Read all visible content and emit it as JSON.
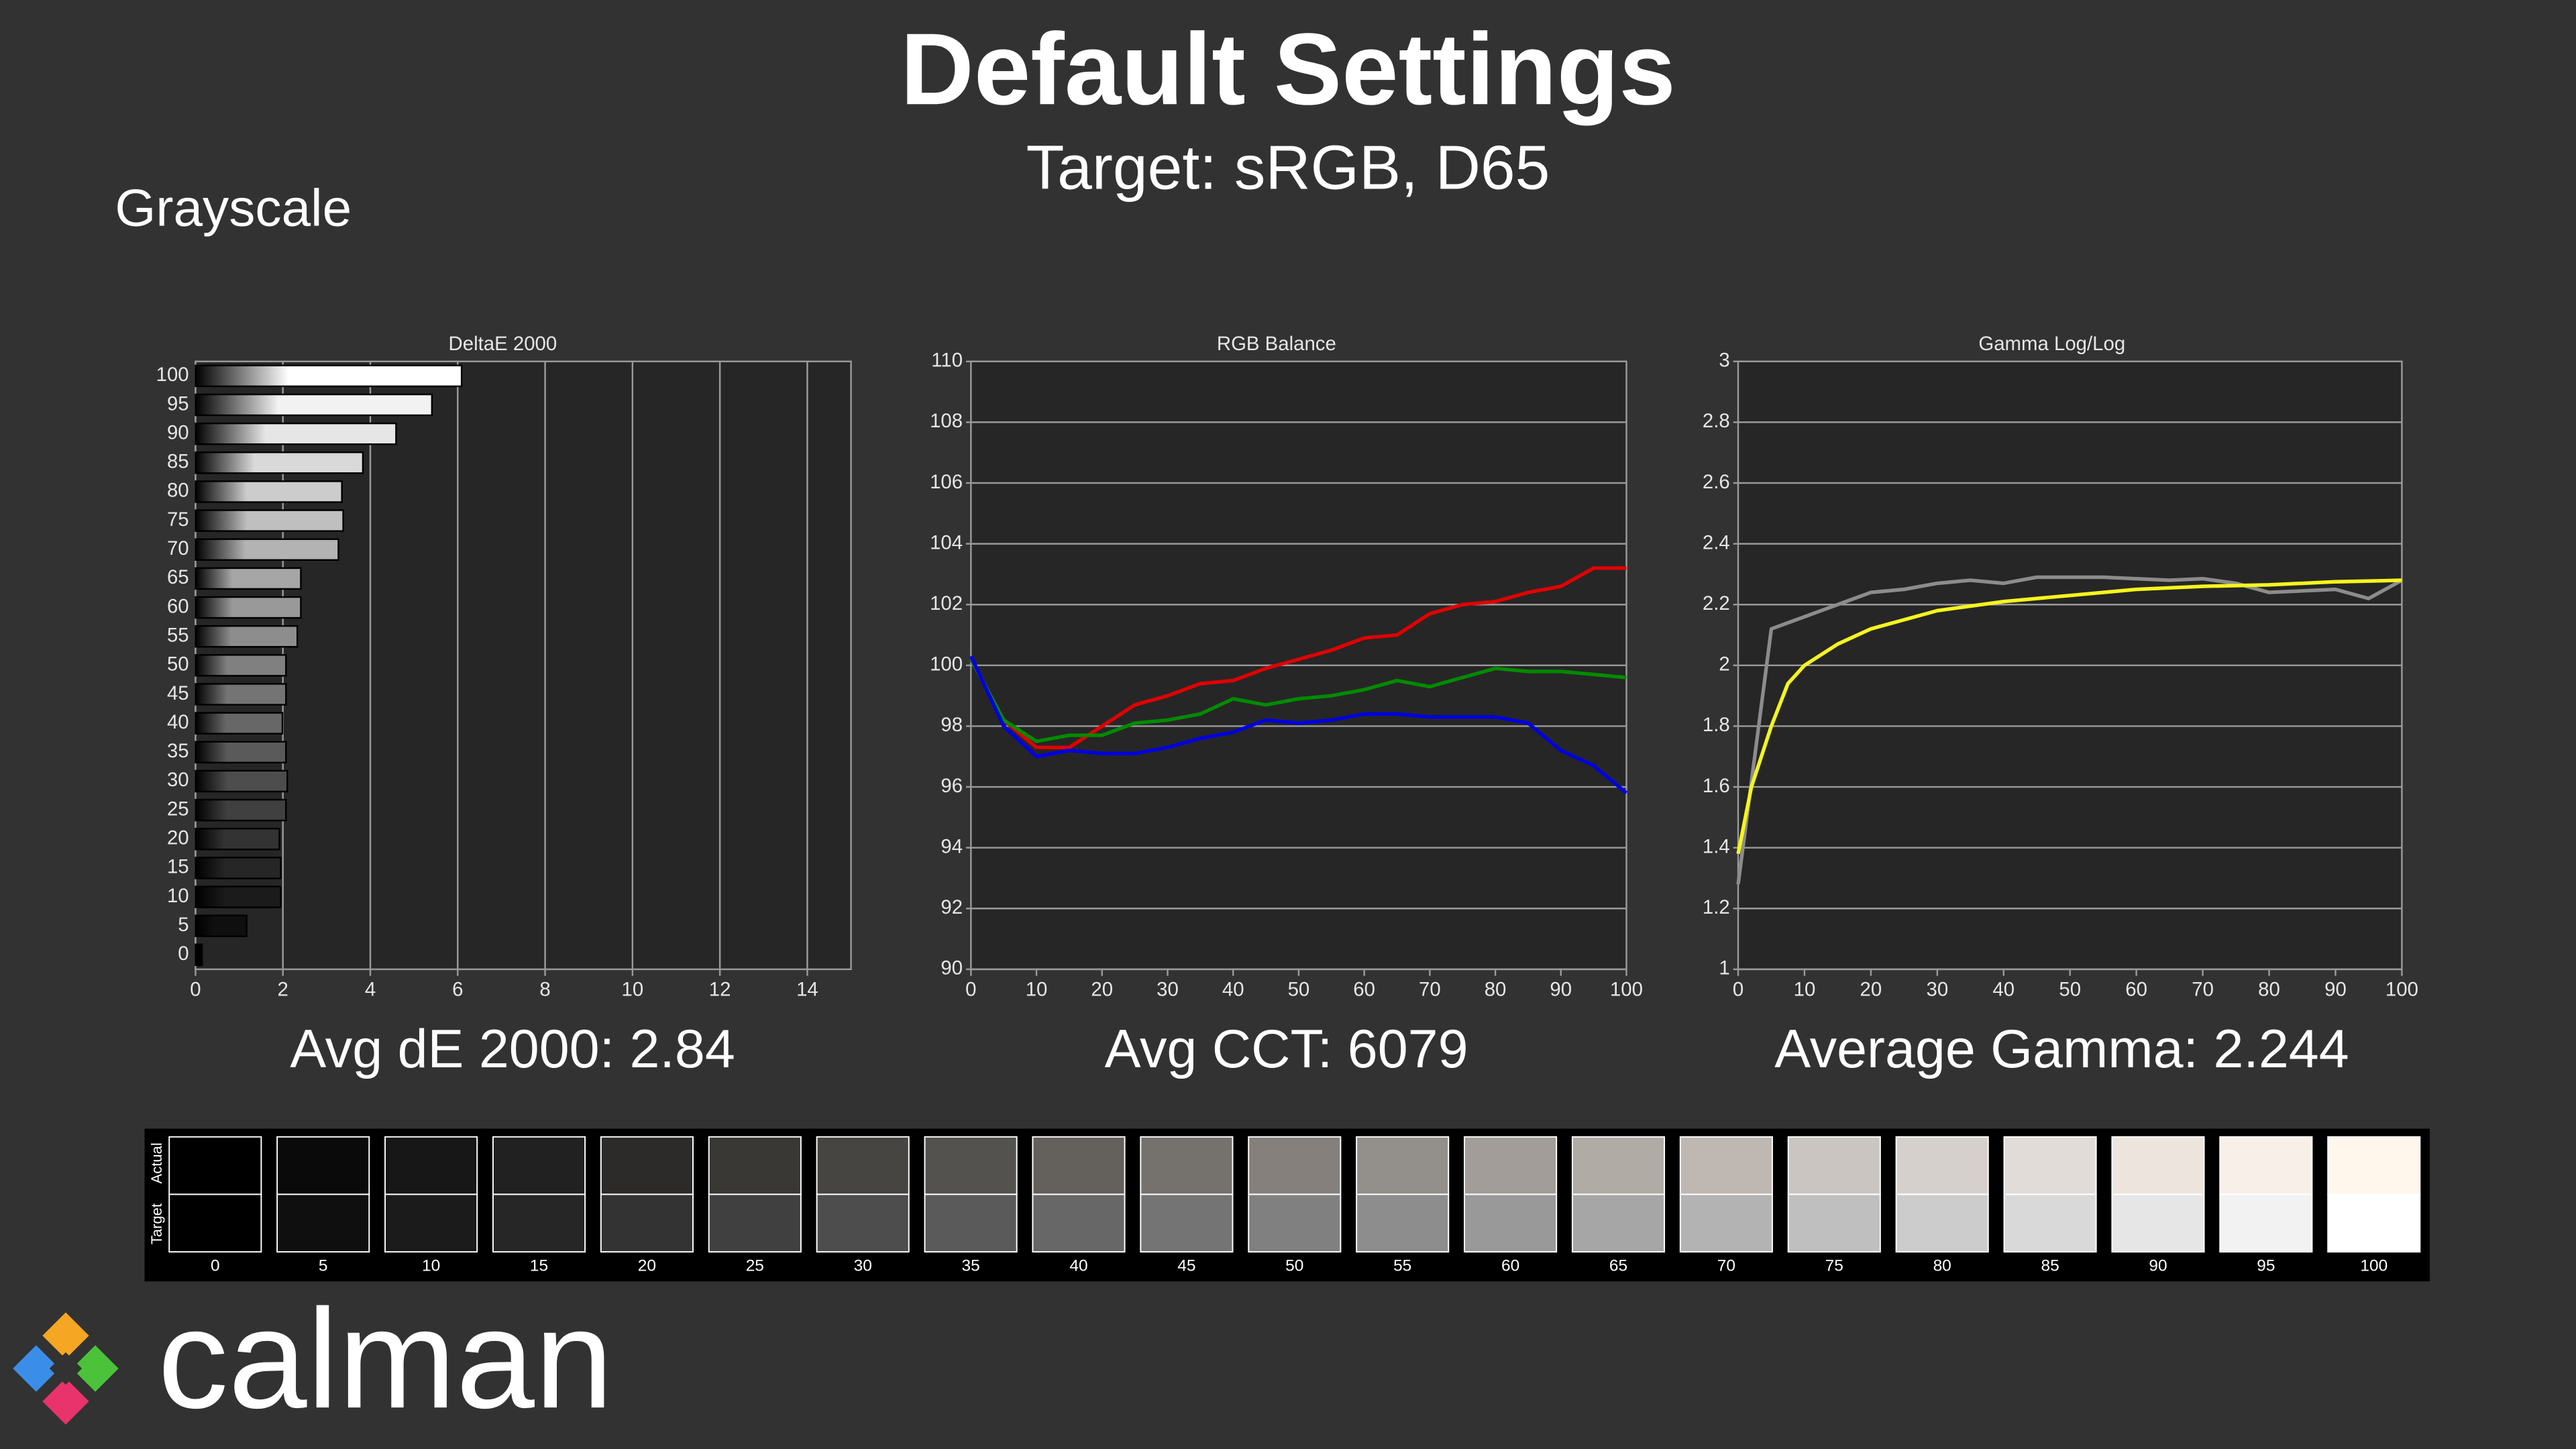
{
  "title": "Default Settings",
  "subtitle": "Target: sRGB, D65",
  "section": "Grayscale",
  "logo": "calman",
  "chart_data": [
    {
      "type": "bar",
      "orientation": "horizontal",
      "title": "DeltaE 2000",
      "annotation": "Avg dE 2000: 2.84",
      "categories": [
        "100",
        "95",
        "90",
        "85",
        "80",
        "75",
        "70",
        "65",
        "60",
        "55",
        "50",
        "45",
        "40",
        "35",
        "30",
        "25",
        "20",
        "15",
        "10",
        "5",
        "0"
      ],
      "values": [
        6.09,
        5.41,
        4.59,
        3.83,
        3.35,
        3.38,
        3.27,
        2.41,
        2.41,
        2.33,
        2.07,
        2.07,
        1.99,
        2.07,
        2.1,
        2.07,
        1.92,
        1.95,
        1.95,
        1.17,
        0.15
      ],
      "colors": [
        "#ffffff",
        "#f2f2f2",
        "#e6e6e6",
        "#d9d9d9",
        "#cccccc",
        "#bfbfbf",
        "#b3b3b3",
        "#a6a6a6",
        "#999999",
        "#8d8d8d",
        "#808080",
        "#747474",
        "#676767",
        "#5a5a5a",
        "#4d4d4d",
        "#404040",
        "#333333",
        "#262626",
        "#1b1b1b",
        "#0f0f0f",
        "#000000"
      ],
      "xlim": [
        0,
        15
      ],
      "xticks": [
        0,
        2,
        4,
        6,
        8,
        10,
        12,
        14
      ],
      "grid": true
    },
    {
      "type": "line",
      "title": "RGB Balance",
      "annotation": "Avg CCT: 6079",
      "x": [
        0,
        5,
        10,
        15,
        20,
        25,
        30,
        35,
        40,
        45,
        50,
        55,
        60,
        65,
        70,
        75,
        80,
        85,
        90,
        95,
        100
      ],
      "series": [
        {
          "color": "#e00000",
          "values": [
            100.2,
            98.2,
            97.3,
            97.3,
            98.0,
            98.7,
            99.0,
            99.4,
            99.5,
            99.9,
            100.2,
            100.5,
            100.9,
            101.0,
            101.7,
            102.0,
            102.1,
            102.4,
            102.6,
            103.2,
            103.2
          ]
        },
        {
          "color": "#008a00",
          "values": [
            100.2,
            98.2,
            97.5,
            97.7,
            97.7,
            98.1,
            98.2,
            98.4,
            98.9,
            98.7,
            98.9,
            99.0,
            99.2,
            99.5,
            99.3,
            99.6,
            99.9,
            99.8,
            99.8,
            99.7,
            99.6
          ]
        },
        {
          "color": "#0000e0",
          "values": [
            100.3,
            98.0,
            97.0,
            97.2,
            97.1,
            97.1,
            97.3,
            97.6,
            97.8,
            98.2,
            98.1,
            98.2,
            98.4,
            98.4,
            98.3,
            98.3,
            98.3,
            98.1,
            97.2,
            96.7,
            95.8
          ]
        }
      ],
      "xlim": [
        0,
        100
      ],
      "xticks": [
        0,
        10,
        20,
        30,
        40,
        50,
        60,
        70,
        80,
        90,
        100
      ],
      "ylim": [
        90,
        110
      ],
      "yticks": [
        90,
        92,
        94,
        96,
        98,
        100,
        102,
        104,
        106,
        108,
        110
      ],
      "grid": true
    },
    {
      "type": "line",
      "title": "Gamma Log/Log",
      "annotation": "Average Gamma: 2.244",
      "series": [
        {
          "color": "#8c8c8c",
          "x": [
            0,
            5,
            10,
            15,
            20,
            25,
            30,
            35,
            40,
            45,
            50,
            55,
            60,
            65,
            70,
            75,
            80,
            85,
            90,
            95,
            100
          ],
          "values": [
            1.28,
            2.12,
            2.16,
            2.2,
            2.24,
            2.25,
            2.27,
            2.28,
            2.27,
            2.29,
            2.29,
            2.29,
            2.285,
            2.28,
            2.285,
            2.27,
            2.24,
            2.245,
            2.25,
            2.22,
            2.28
          ]
        },
        {
          "color": "#f5f51e",
          "x": [
            0,
            2,
            5,
            7.5,
            10,
            15,
            20,
            30,
            40,
            50,
            60,
            70,
            80,
            90,
            100
          ],
          "values": [
            1.38,
            1.6,
            1.8,
            1.94,
            2.0,
            2.07,
            2.12,
            2.18,
            2.21,
            2.23,
            2.25,
            2.26,
            2.265,
            2.275,
            2.28
          ]
        }
      ],
      "xlim": [
        0,
        100
      ],
      "xticks": [
        0,
        10,
        20,
        30,
        40,
        50,
        60,
        70,
        80,
        90,
        100
      ],
      "ylim": [
        1,
        3
      ],
      "yticks": [
        1,
        1.2,
        1.4,
        1.6,
        1.8,
        2,
        2.2,
        2.4,
        2.6,
        2.8,
        3
      ],
      "grid": true
    }
  ],
  "swatches": {
    "actual_label": "Actual",
    "target_label": "Target",
    "categories": [
      "0",
      "5",
      "10",
      "15",
      "20",
      "25",
      "30",
      "35",
      "40",
      "45",
      "50",
      "55",
      "60",
      "65",
      "70",
      "75",
      "80",
      "85",
      "90",
      "95",
      "100"
    ],
    "actual": [
      "#000000",
      "#0a0a0a",
      "#171717",
      "#212121",
      "#2c2b2a",
      "#393835",
      "#464542",
      "#54524f",
      "#64615d",
      "#75716d",
      "#85807c",
      "#938f8a",
      "#a29d98",
      "#b1aba6",
      "#bfb7b2",
      "#cac5c1",
      "#d6d0cc",
      "#e2dcd8",
      "#ece4dd",
      "#f8efe8",
      "#fff6ec"
    ],
    "target": [
      "#000000",
      "#0f0f0f",
      "#1b1b1b",
      "#262626",
      "#333333",
      "#404040",
      "#4d4d4d",
      "#5a5a5a",
      "#676767",
      "#747474",
      "#808080",
      "#8d8d8d",
      "#999999",
      "#a6a6a6",
      "#b3b3b3",
      "#bfbfbf",
      "#cccccc",
      "#d9d9d9",
      "#e6e6e6",
      "#f2f2f2",
      "#ffffff"
    ]
  }
}
